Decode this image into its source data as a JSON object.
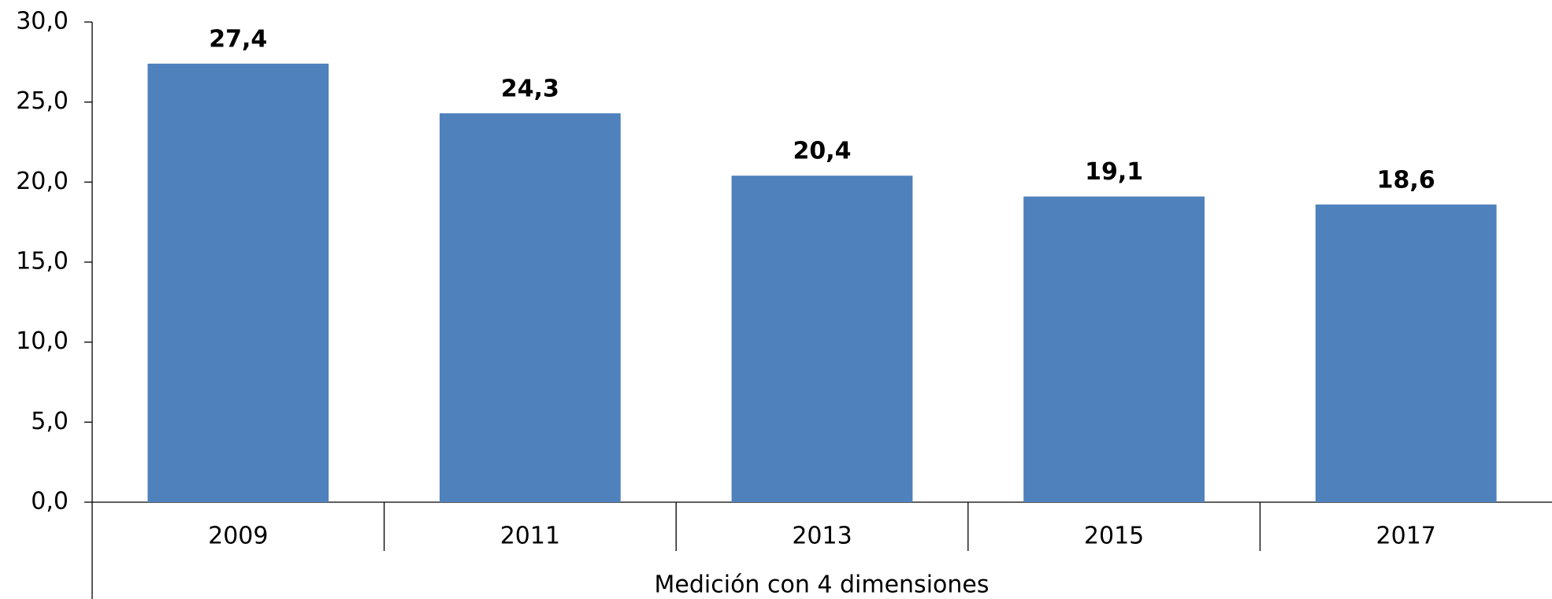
{
  "chart_data": {
    "type": "bar",
    "categories": [
      "2009",
      "2011",
      "2013",
      "2015",
      "2017"
    ],
    "values": [
      27.4,
      24.3,
      20.4,
      19.1,
      18.6
    ],
    "value_labels": [
      "27,4",
      "24,3",
      "20,4",
      "19,1",
      "18,6"
    ],
    "color": "#4f81bd",
    "x_label": "Medición con 4 dimensiones",
    "ylim": [
      0,
      30
    ],
    "yticks": [
      {
        "value": 0,
        "label": "0,0"
      },
      {
        "value": 5,
        "label": "5,0"
      },
      {
        "value": 10,
        "label": "10,0"
      },
      {
        "value": 15,
        "label": "15,0"
      },
      {
        "value": 20,
        "label": "20,0"
      },
      {
        "value": 25,
        "label": "25,0"
      },
      {
        "value": 30,
        "label": "30,0"
      }
    ],
    "grid": false
  }
}
